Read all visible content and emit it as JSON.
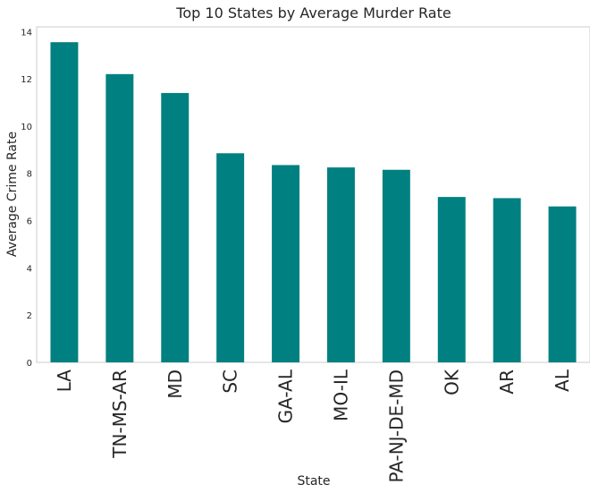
{
  "chart_data": {
    "type": "bar",
    "title": "Top 10 States by Average Murder Rate",
    "xlabel": "State",
    "ylabel": "Average Crime Rate",
    "categories": [
      "LA",
      "TN-MS-AR",
      "MD",
      "SC",
      "GA-AL",
      "MO-IL",
      "PA-NJ-DE-MD",
      "OK",
      "AR",
      "AL"
    ],
    "values": [
      13.55,
      12.2,
      11.4,
      8.85,
      8.35,
      8.25,
      8.15,
      7.0,
      6.95,
      6.6
    ],
    "ylim": [
      0,
      14.2
    ],
    "yticks": [
      0,
      2,
      4,
      6,
      8,
      10,
      12,
      14
    ],
    "grid": false,
    "legend": "none",
    "bar_color": "#008080",
    "frame_color": "#cccccc"
  }
}
